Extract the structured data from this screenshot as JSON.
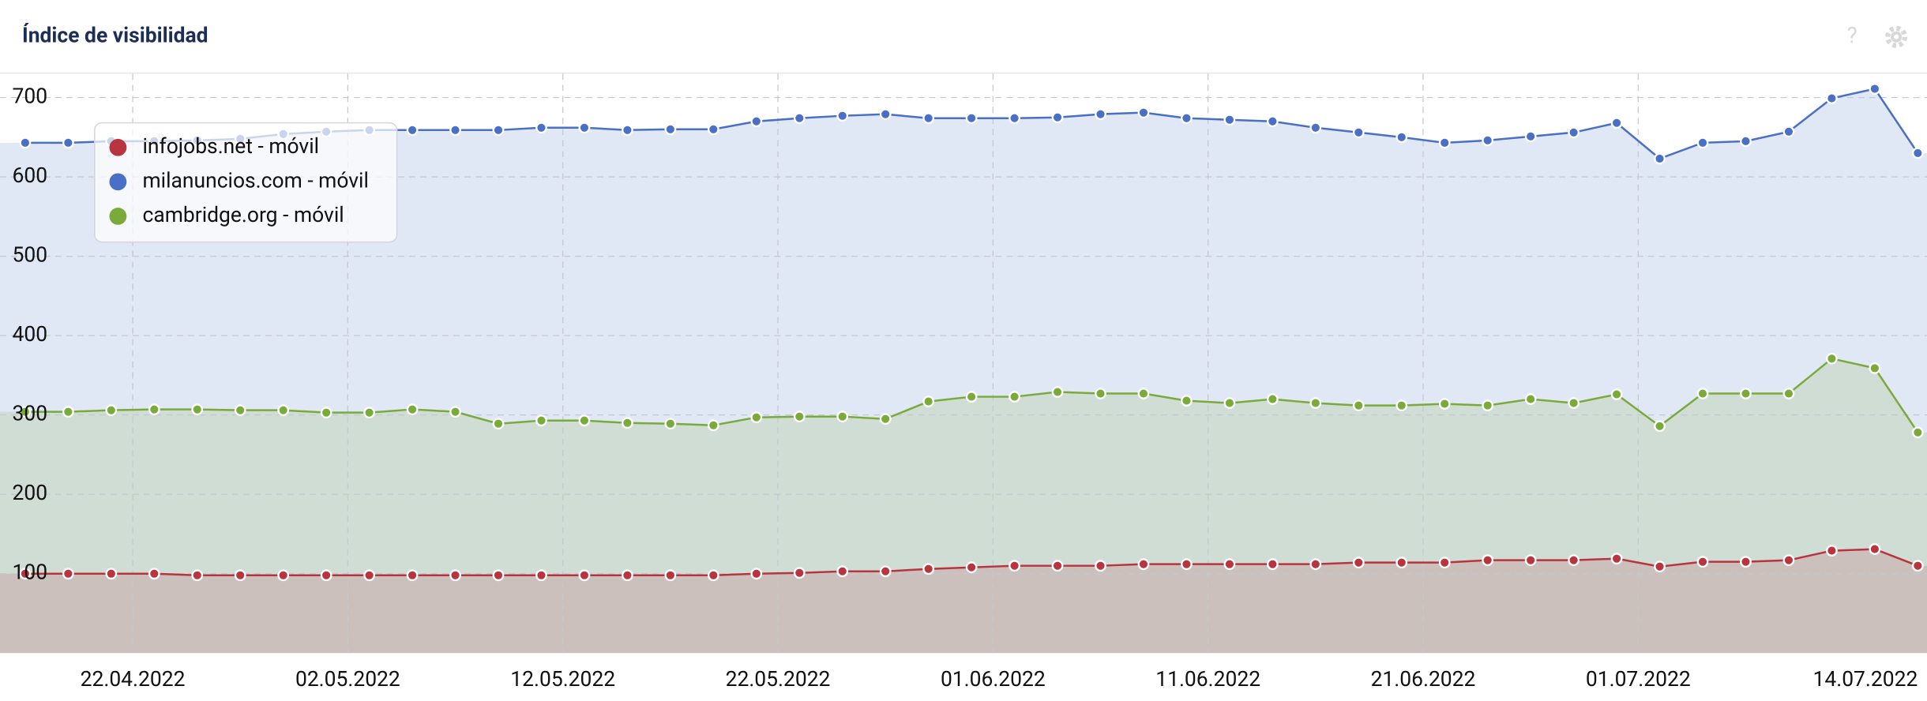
{
  "chart_data": {
    "type": "area-line",
    "title": "Índice de visibilidad",
    "x": [
      "17.04.2022",
      "19.04.2022",
      "21.04.2022",
      "23.04.2022",
      "25.04.2022",
      "27.04.2022",
      "29.04.2022",
      "01.05.2022",
      "03.05.2022",
      "05.05.2022",
      "07.05.2022",
      "09.05.2022",
      "11.05.2022",
      "13.05.2022",
      "15.05.2022",
      "17.05.2022",
      "19.05.2022",
      "21.05.2022",
      "23.05.2022",
      "25.05.2022",
      "27.05.2022",
      "29.05.2022",
      "31.05.2022",
      "02.06.2022",
      "04.06.2022",
      "06.06.2022",
      "08.06.2022",
      "10.06.2022",
      "12.06.2022",
      "14.06.2022",
      "16.06.2022",
      "18.06.2022",
      "20.06.2022",
      "22.06.2022",
      "24.06.2022",
      "26.06.2022",
      "28.06.2022",
      "30.06.2022",
      "02.07.2022",
      "04.07.2022",
      "06.07.2022",
      "08.07.2022",
      "10.07.2022",
      "12.07.2022",
      "14.07.2022"
    ],
    "series": [
      {
        "name": "infojobs.net - móvil",
        "color": "#b8343f",
        "values": [
          100,
          100,
          100,
          100,
          98,
          98,
          98,
          98,
          98,
          98,
          98,
          98,
          98,
          98,
          98,
          98,
          98,
          100,
          101,
          103,
          103,
          106,
          108,
          110,
          110,
          110,
          112,
          112,
          112,
          112,
          112,
          114,
          114,
          114,
          117,
          117,
          117,
          119,
          109,
          115,
          115,
          117,
          129,
          131,
          110
        ]
      },
      {
        "name": "milanuncios.com - móvil",
        "color": "#4a6fc6",
        "values": [
          643,
          643,
          645,
          645,
          646,
          648,
          654,
          657,
          659,
          659,
          659,
          659,
          662,
          662,
          659,
          660,
          660,
          670,
          674,
          677,
          679,
          674,
          674,
          674,
          675,
          679,
          681,
          674,
          672,
          670,
          662,
          656,
          650,
          643,
          646,
          651,
          656,
          668,
          623,
          643,
          645,
          657,
          699,
          711,
          630
        ]
      },
      {
        "name": "cambridge.org - móvil",
        "color": "#7aab3a",
        "values": [
          304,
          304,
          306,
          307,
          307,
          306,
          306,
          303,
          303,
          307,
          304,
          289,
          293,
          293,
          290,
          289,
          287,
          297,
          298,
          298,
          295,
          317,
          323,
          323,
          329,
          327,
          327,
          318,
          315,
          320,
          315,
          312,
          312,
          314,
          312,
          320,
          315,
          326,
          286,
          327,
          327,
          327,
          371,
          359,
          278
        ]
      }
    ],
    "xticks": [
      "22.04.2022",
      "02.05.2022",
      "12.05.2022",
      "22.05.2022",
      "01.06.2022",
      "11.06.2022",
      "21.06.2022",
      "01.07.2022",
      "14.07.2022"
    ],
    "ylim": [
      0,
      730
    ],
    "yticks": [
      100,
      200,
      300,
      400,
      500,
      600,
      700
    ],
    "grid": true
  }
}
